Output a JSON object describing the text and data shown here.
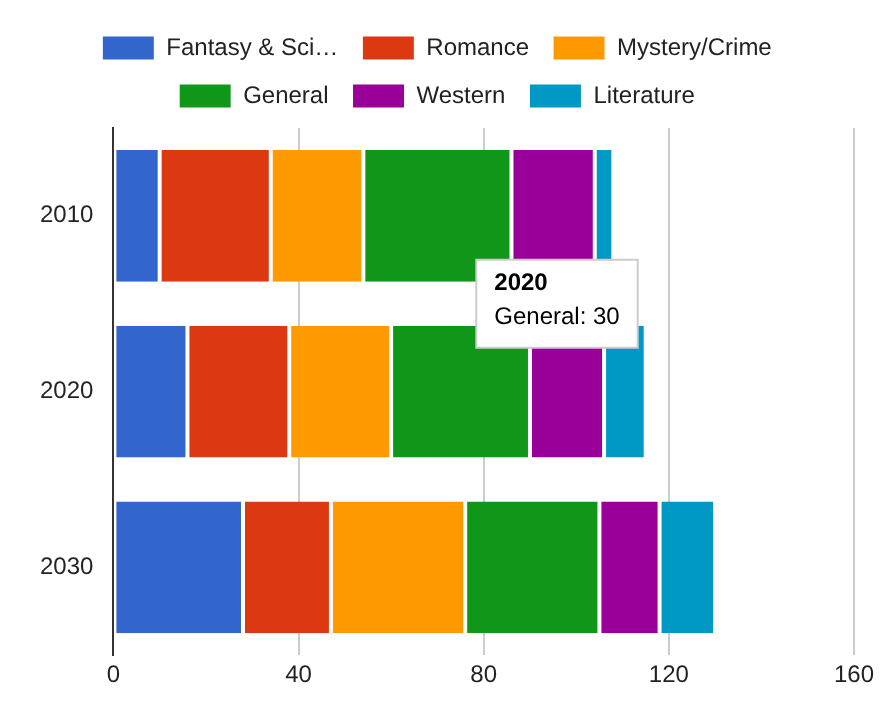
{
  "chart_data": {
    "type": "bar",
    "orientation": "horizontal",
    "stacked": true,
    "categories": [
      "2010",
      "2020",
      "2030"
    ],
    "series": [
      {
        "name": "Fantasy & Sci…",
        "color": "#3366cc",
        "values": [
          10,
          16,
          28
        ]
      },
      {
        "name": "Romance",
        "color": "#dc3912",
        "values": [
          24,
          22,
          19
        ]
      },
      {
        "name": "Mystery/Crime",
        "color": "#ff9900",
        "values": [
          20,
          22,
          29
        ]
      },
      {
        "name": "General",
        "color": "#109618",
        "values": [
          32,
          30,
          29
        ]
      },
      {
        "name": "Western",
        "color": "#990099",
        "values": [
          18,
          16,
          13
        ]
      },
      {
        "name": "Literature",
        "color": "#0099c6",
        "values": [
          4,
          9,
          12
        ]
      }
    ],
    "xlim": [
      0,
      160
    ],
    "xticks": [
      0,
      40,
      80,
      120,
      160
    ],
    "grid": "x",
    "legend": "top",
    "annotations": [
      "2020\nGeneral: 30"
    ]
  }
}
